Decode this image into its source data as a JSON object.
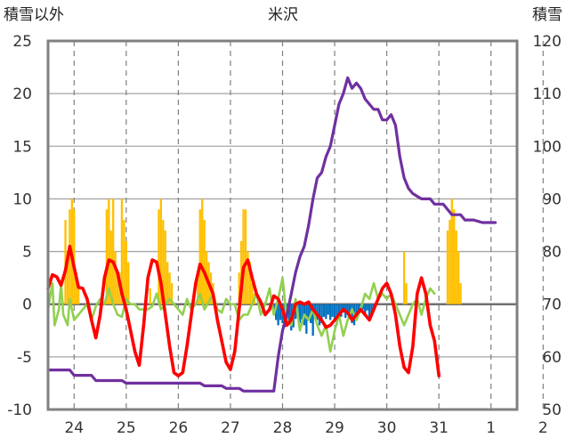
{
  "chart_data": {
    "type": "line",
    "title": "米沢",
    "left_axis_label": "積雪以外",
    "right_axis_label": "積雪",
    "ylim_left": [
      -10,
      25
    ],
    "ylim_right": [
      50,
      120
    ],
    "left_ticks": [
      "25",
      "20",
      "15",
      "10",
      "5",
      "0",
      "-5",
      "-10"
    ],
    "right_ticks": [
      "120",
      "110",
      "100",
      "90",
      "80",
      "70",
      "60",
      "50"
    ],
    "x_range_hours": [
      0,
      216
    ],
    "day_labels": [
      "24",
      "25",
      "26",
      "27",
      "28",
      "29",
      "30",
      "31",
      "1",
      "2"
    ],
    "grid": "dashed vertical at each day, horizontal at each major tick",
    "colors": {
      "temperature": "#ff0000",
      "other": "#92d050",
      "snow_depth": "#7030a0",
      "precipitation": "#ffc000",
      "negative_bars": "#0070c0",
      "frame": "#808080",
      "zero_line": "#707070"
    },
    "series": [
      {
        "key": "temperature",
        "axis": "left",
        "points": [
          [
            0,
            1.5
          ],
          [
            2,
            2.8
          ],
          [
            4,
            2.6
          ],
          [
            6,
            1.8
          ],
          [
            8,
            3.2
          ],
          [
            10,
            5.5
          ],
          [
            12,
            3.5
          ],
          [
            14,
            1.6
          ],
          [
            16,
            1.5
          ],
          [
            18,
            0.5
          ],
          [
            20,
            -1.5
          ],
          [
            22,
            -3.2
          ],
          [
            24,
            -1.0
          ],
          [
            26,
            2.5
          ],
          [
            28,
            4.2
          ],
          [
            30,
            4.0
          ],
          [
            32,
            3.0
          ],
          [
            34,
            1.0
          ],
          [
            36,
            -0.5
          ],
          [
            38,
            -2.5
          ],
          [
            40,
            -4.5
          ],
          [
            42,
            -5.8
          ],
          [
            44,
            -2.0
          ],
          [
            46,
            2.5
          ],
          [
            48,
            4.2
          ],
          [
            50,
            4.0
          ],
          [
            52,
            2.0
          ],
          [
            54,
            -1.0
          ],
          [
            56,
            -4.0
          ],
          [
            58,
            -6.5
          ],
          [
            60,
            -6.8
          ],
          [
            62,
            -6.5
          ],
          [
            64,
            -4.0
          ],
          [
            66,
            -1.0
          ],
          [
            68,
            2.0
          ],
          [
            70,
            3.8
          ],
          [
            72,
            3.0
          ],
          [
            74,
            2.0
          ],
          [
            76,
            1.0
          ],
          [
            78,
            -1.5
          ],
          [
            80,
            -3.5
          ],
          [
            82,
            -5.5
          ],
          [
            84,
            -6.2
          ],
          [
            86,
            -4.5
          ],
          [
            88,
            -0.5
          ],
          [
            90,
            3.5
          ],
          [
            92,
            4.2
          ],
          [
            94,
            2.5
          ],
          [
            96,
            1.0
          ],
          [
            98,
            0.2
          ],
          [
            100,
            -1.0
          ],
          [
            102,
            -0.5
          ],
          [
            104,
            0.8
          ],
          [
            106,
            0.5
          ],
          [
            108,
            -0.5
          ],
          [
            110,
            -2.0
          ],
          [
            112,
            -1.5
          ],
          [
            114,
            0.0
          ],
          [
            116,
            0.2
          ],
          [
            118,
            0.0
          ],
          [
            120,
            0.2
          ],
          [
            122,
            -0.5
          ],
          [
            124,
            -1.0
          ],
          [
            126,
            -1.5
          ],
          [
            128,
            -2.2
          ],
          [
            130,
            -2.0
          ],
          [
            132,
            -1.5
          ],
          [
            134,
            -1.0
          ],
          [
            136,
            -0.5
          ],
          [
            138,
            -0.8
          ],
          [
            140,
            -1.5
          ],
          [
            142,
            -1.0
          ],
          [
            144,
            -0.5
          ],
          [
            146,
            -1.0
          ],
          [
            148,
            -1.5
          ],
          [
            150,
            -0.5
          ],
          [
            152,
            0.5
          ],
          [
            154,
            1.5
          ],
          [
            156,
            2.0
          ],
          [
            158,
            1.0
          ],
          [
            160,
            -1.0
          ],
          [
            162,
            -4.0
          ],
          [
            164,
            -6.0
          ],
          [
            166,
            -6.5
          ],
          [
            168,
            -4.0
          ],
          [
            170,
            1.0
          ],
          [
            172,
            2.5
          ],
          [
            174,
            1.0
          ],
          [
            176,
            -2.0
          ],
          [
            178,
            -3.5
          ],
          [
            180,
            -6.8
          ]
        ]
      },
      {
        "key": "other",
        "axis": "left",
        "points": [
          [
            0,
            -0.5
          ],
          [
            2,
            2.0
          ],
          [
            3,
            -2.0
          ],
          [
            5,
            -0.5
          ],
          [
            6,
            2.0
          ],
          [
            7,
            -1.0
          ],
          [
            9,
            -2.0
          ],
          [
            10,
            0.5
          ],
          [
            12,
            -1.5
          ],
          [
            14,
            -1.0
          ],
          [
            16,
            -0.5
          ],
          [
            18,
            0.0
          ],
          [
            20,
            -1.5
          ],
          [
            22,
            -0.2
          ],
          [
            24,
            0.5
          ],
          [
            26,
            0.0
          ],
          [
            28,
            1.5
          ],
          [
            30,
            0.0
          ],
          [
            32,
            -1.0
          ],
          [
            34,
            -1.2
          ],
          [
            36,
            0.5
          ],
          [
            38,
            0.0
          ],
          [
            40,
            0.0
          ],
          [
            42,
            -0.5
          ],
          [
            44,
            -0.5
          ],
          [
            46,
            -0.5
          ],
          [
            48,
            -0.2
          ],
          [
            50,
            1.0
          ],
          [
            52,
            -0.5
          ],
          [
            54,
            0.0
          ],
          [
            56,
            0.5
          ],
          [
            58,
            0.0
          ],
          [
            60,
            -0.5
          ],
          [
            62,
            -1.0
          ],
          [
            64,
            0.5
          ],
          [
            66,
            -0.5
          ],
          [
            68,
            0.0
          ],
          [
            70,
            1.0
          ],
          [
            72,
            -0.5
          ],
          [
            74,
            0.2
          ],
          [
            76,
            1.0
          ],
          [
            78,
            -0.5
          ],
          [
            80,
            -0.8
          ],
          [
            82,
            0.5
          ],
          [
            84,
            0.0
          ],
          [
            86,
            0.0
          ],
          [
            88,
            -1.5
          ],
          [
            90,
            -1.0
          ],
          [
            92,
            -1.0
          ],
          [
            94,
            0.0
          ],
          [
            96,
            1.0
          ],
          [
            98,
            -1.0
          ],
          [
            100,
            0.0
          ],
          [
            102,
            1.5
          ],
          [
            104,
            -1.0
          ],
          [
            106,
            0.5
          ],
          [
            108,
            2.5
          ],
          [
            110,
            -1.5
          ],
          [
            112,
            -2.0
          ],
          [
            114,
            0.5
          ],
          [
            116,
            -2.5
          ],
          [
            118,
            -1.0
          ],
          [
            120,
            -1.5
          ],
          [
            122,
            -0.5
          ],
          [
            124,
            -2.0
          ],
          [
            126,
            -3.0
          ],
          [
            128,
            -2.0
          ],
          [
            130,
            -4.5
          ],
          [
            132,
            -2.5
          ],
          [
            134,
            -1.0
          ],
          [
            136,
            -3.0
          ],
          [
            138,
            -1.5
          ],
          [
            140,
            -0.5
          ],
          [
            142,
            -1.5
          ],
          [
            144,
            -0.5
          ],
          [
            146,
            1.0
          ],
          [
            148,
            0.5
          ],
          [
            150,
            2.0
          ],
          [
            152,
            0.5
          ],
          [
            154,
            1.0
          ],
          [
            156,
            0.5
          ],
          [
            158,
            1.0
          ],
          [
            160,
            0.0
          ],
          [
            162,
            -1.0
          ],
          [
            164,
            -2.0
          ],
          [
            166,
            -1.0
          ],
          [
            168,
            0.0
          ],
          [
            170,
            0.5
          ],
          [
            172,
            -1.0
          ],
          [
            174,
            0.5
          ],
          [
            176,
            1.5
          ],
          [
            178,
            1.0
          ]
        ]
      },
      {
        "key": "snow_depth",
        "axis": "right",
        "points": [
          [
            0,
            57.5
          ],
          [
            10,
            57.5
          ],
          [
            12,
            56.5
          ],
          [
            20,
            56.5
          ],
          [
            22,
            55.5
          ],
          [
            34,
            55.5
          ],
          [
            36,
            55.0
          ],
          [
            48,
            55.0
          ],
          [
            56,
            55.0
          ],
          [
            60,
            55.0
          ],
          [
            70,
            55.0
          ],
          [
            72,
            54.5
          ],
          [
            80,
            54.5
          ],
          [
            82,
            54.0
          ],
          [
            88,
            54.0
          ],
          [
            90,
            53.5
          ],
          [
            96,
            53.5
          ],
          [
            104,
            53.5
          ],
          [
            106,
            60.0
          ],
          [
            108,
            65.0
          ],
          [
            110,
            68.0
          ],
          [
            112,
            72.0
          ],
          [
            114,
            76.0
          ],
          [
            116,
            79.0
          ],
          [
            118,
            81.0
          ],
          [
            120,
            85.0
          ],
          [
            122,
            90.0
          ],
          [
            124,
            94.0
          ],
          [
            126,
            95.0
          ],
          [
            128,
            98.0
          ],
          [
            130,
            100.0
          ],
          [
            132,
            104.0
          ],
          [
            134,
            108.0
          ],
          [
            136,
            110.0
          ],
          [
            138,
            113.0
          ],
          [
            140,
            111.0
          ],
          [
            142,
            112.0
          ],
          [
            144,
            111.0
          ],
          [
            146,
            109.0
          ],
          [
            148,
            108.0
          ],
          [
            150,
            107.0
          ],
          [
            152,
            107.0
          ],
          [
            154,
            105.0
          ],
          [
            156,
            105.0
          ],
          [
            158,
            106.0
          ],
          [
            160,
            104.0
          ],
          [
            162,
            98.0
          ],
          [
            164,
            94.0
          ],
          [
            166,
            92.0
          ],
          [
            168,
            91.0
          ],
          [
            170,
            90.5
          ],
          [
            172,
            90.0
          ],
          [
            176,
            90.0
          ],
          [
            178,
            89.0
          ],
          [
            182,
            89.0
          ],
          [
            184,
            88.0
          ],
          [
            186,
            87.0
          ],
          [
            190,
            87.0
          ],
          [
            192,
            86.0
          ],
          [
            196,
            86.0
          ],
          [
            200,
            85.5
          ],
          [
            206,
            85.5
          ]
        ]
      }
    ],
    "precipitation_bars": [
      [
        8,
        8
      ],
      [
        9,
        5
      ],
      [
        10,
        9
      ],
      [
        11,
        10
      ],
      [
        12,
        9
      ],
      [
        13,
        3
      ],
      [
        14,
        2
      ],
      [
        27,
        9
      ],
      [
        28,
        10
      ],
      [
        29,
        7
      ],
      [
        30,
        10
      ],
      [
        31,
        5
      ],
      [
        32,
        3
      ],
      [
        33,
        3
      ],
      [
        34,
        10
      ],
      [
        35,
        8
      ],
      [
        36,
        6
      ],
      [
        37,
        4
      ],
      [
        47,
        1.5
      ],
      [
        51,
        9
      ],
      [
        52,
        10
      ],
      [
        53,
        8
      ],
      [
        54,
        7
      ],
      [
        55,
        4
      ],
      [
        56,
        3
      ],
      [
        57,
        2
      ],
      [
        69,
        3
      ],
      [
        70,
        9
      ],
      [
        71,
        10
      ],
      [
        72,
        8
      ],
      [
        73,
        5
      ],
      [
        74,
        4
      ],
      [
        75,
        3
      ],
      [
        76,
        2
      ],
      [
        88,
        3
      ],
      [
        89,
        6
      ],
      [
        90,
        9
      ],
      [
        91,
        9
      ],
      [
        92,
        5
      ],
      [
        93,
        4
      ],
      [
        94,
        2
      ],
      [
        95,
        1
      ],
      [
        164,
        5
      ],
      [
        165,
        2
      ],
      [
        184,
        7
      ],
      [
        185,
        8
      ],
      [
        186,
        10
      ],
      [
        187,
        9
      ],
      [
        188,
        7
      ],
      [
        189,
        5
      ],
      [
        190,
        2
      ]
    ],
    "negative_bars": [
      [
        104,
        -1.0
      ],
      [
        105,
        -1.5
      ],
      [
        106,
        -2.0
      ],
      [
        107,
        -1.5
      ],
      [
        108,
        -1.8
      ],
      [
        109,
        -2.2
      ],
      [
        110,
        -2.0
      ],
      [
        111,
        -1.6
      ],
      [
        112,
        -2.5
      ],
      [
        113,
        -2.2
      ],
      [
        114,
        -1.4
      ],
      [
        115,
        -1.2
      ],
      [
        116,
        -1.8
      ],
      [
        117,
        -1.5
      ],
      [
        118,
        -2.0
      ],
      [
        119,
        -2.8
      ],
      [
        120,
        -1.5
      ],
      [
        121,
        -1.8
      ],
      [
        122,
        -3.0
      ],
      [
        123,
        -1.2
      ],
      [
        124,
        -1.5
      ],
      [
        125,
        -2.0
      ],
      [
        126,
        -1.8
      ],
      [
        127,
        -1.2
      ],
      [
        128,
        -1.4
      ],
      [
        129,
        -1.0
      ],
      [
        130,
        -1.5
      ],
      [
        131,
        -1.2
      ],
      [
        132,
        -1.6
      ],
      [
        133,
        -2.0
      ],
      [
        134,
        -1.4
      ],
      [
        135,
        -1.2
      ],
      [
        136,
        -0.8
      ],
      [
        137,
        -1.3
      ],
      [
        138,
        -1.0
      ],
      [
        139,
        -1.4
      ],
      [
        140,
        -1.8
      ],
      [
        141,
        -2.0
      ],
      [
        142,
        -1.3
      ],
      [
        143,
        -1.0
      ],
      [
        144,
        -0.8
      ],
      [
        145,
        -0.5
      ],
      [
        146,
        -1.0
      ],
      [
        147,
        -0.6
      ],
      [
        148,
        -1.2
      ],
      [
        149,
        -0.8
      ],
      [
        150,
        -0.5
      ]
    ]
  }
}
